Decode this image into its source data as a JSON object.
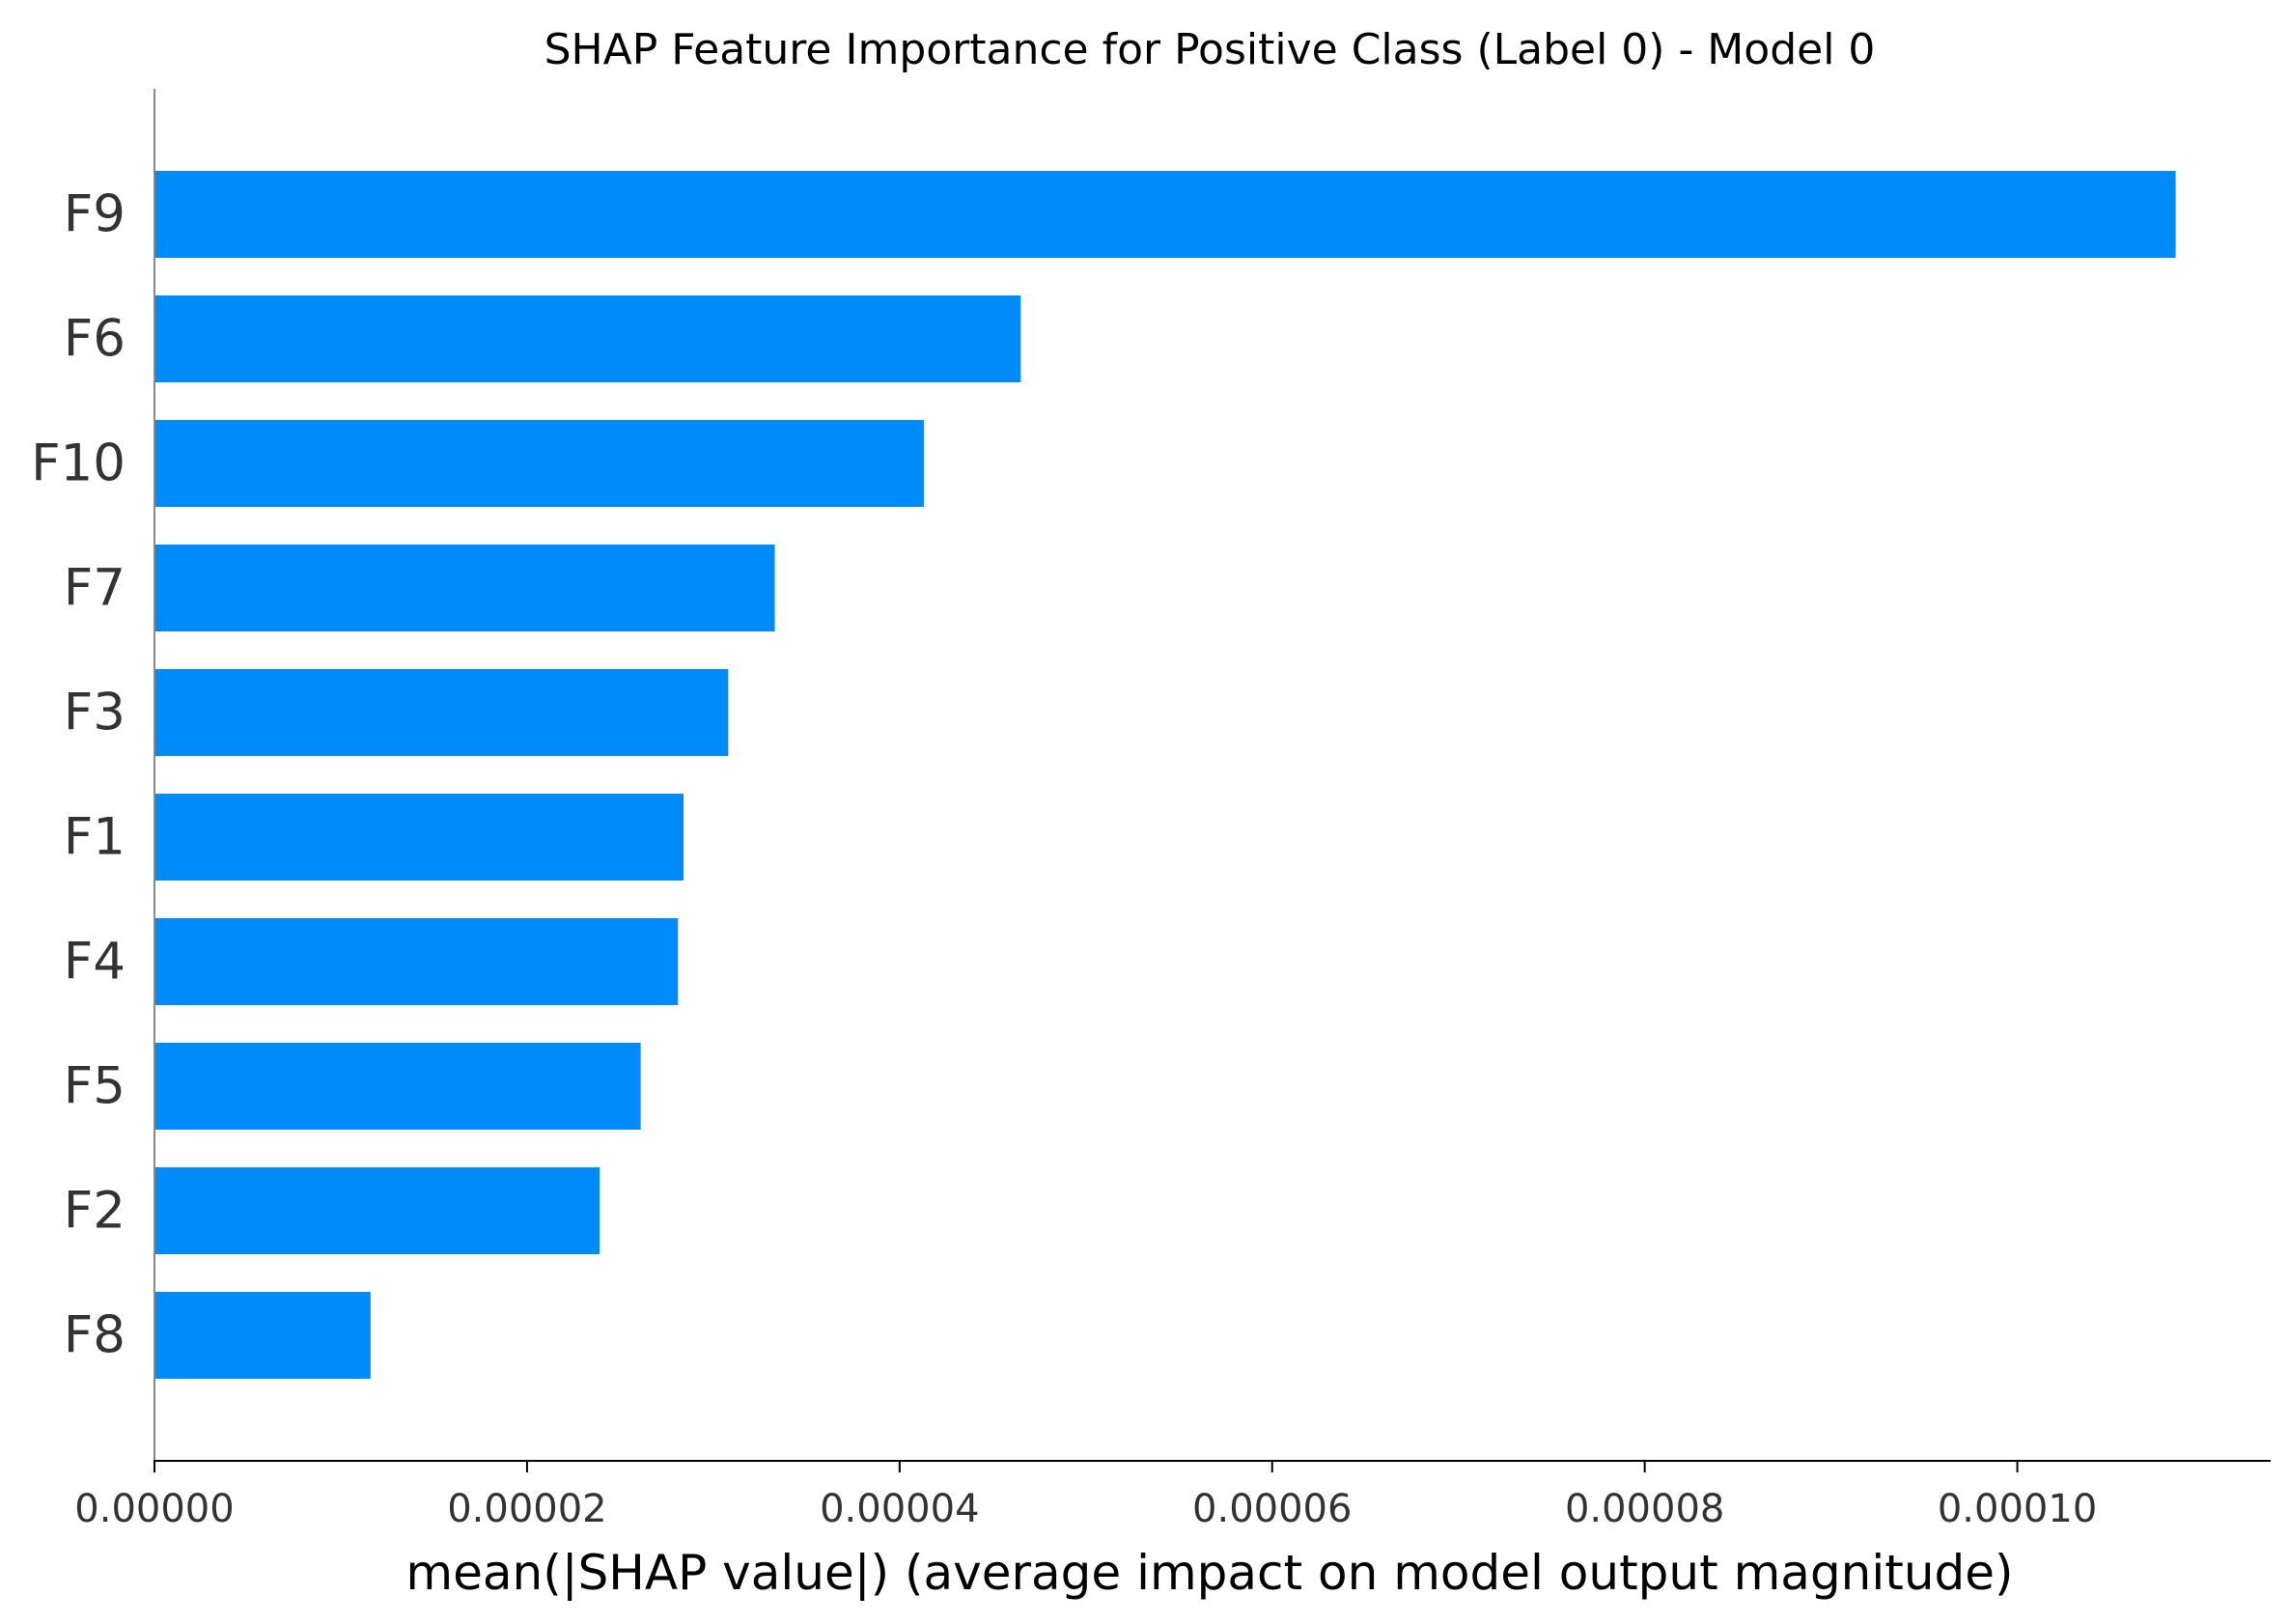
{
  "chart_data": {
    "type": "bar",
    "orientation": "horizontal",
    "title": "SHAP Feature Importance for Positive Class (Label 0) - Model 0",
    "xlabel": "mean(|SHAP value|) (average impact on model output magnitude)",
    "ylabel": "",
    "categories": [
      "F9",
      "F6",
      "F10",
      "F7",
      "F3",
      "F1",
      "F4",
      "F5",
      "F2",
      "F8"
    ],
    "values": [
      0.0001085,
      4.65e-05,
      4.13e-05,
      3.33e-05,
      3.08e-05,
      2.84e-05,
      2.81e-05,
      2.61e-05,
      2.39e-05,
      1.16e-05
    ],
    "xlim": [
      0,
      0.0001136
    ],
    "xticks": [
      0,
      2e-05,
      4e-05,
      6e-05,
      8e-05,
      0.0001
    ],
    "xtick_labels": [
      "0.00000",
      "0.00002",
      "0.00004",
      "0.00006",
      "0.00008",
      "0.00010"
    ],
    "bar_color": "#008bfb",
    "grid": false,
    "legend": "none"
  }
}
